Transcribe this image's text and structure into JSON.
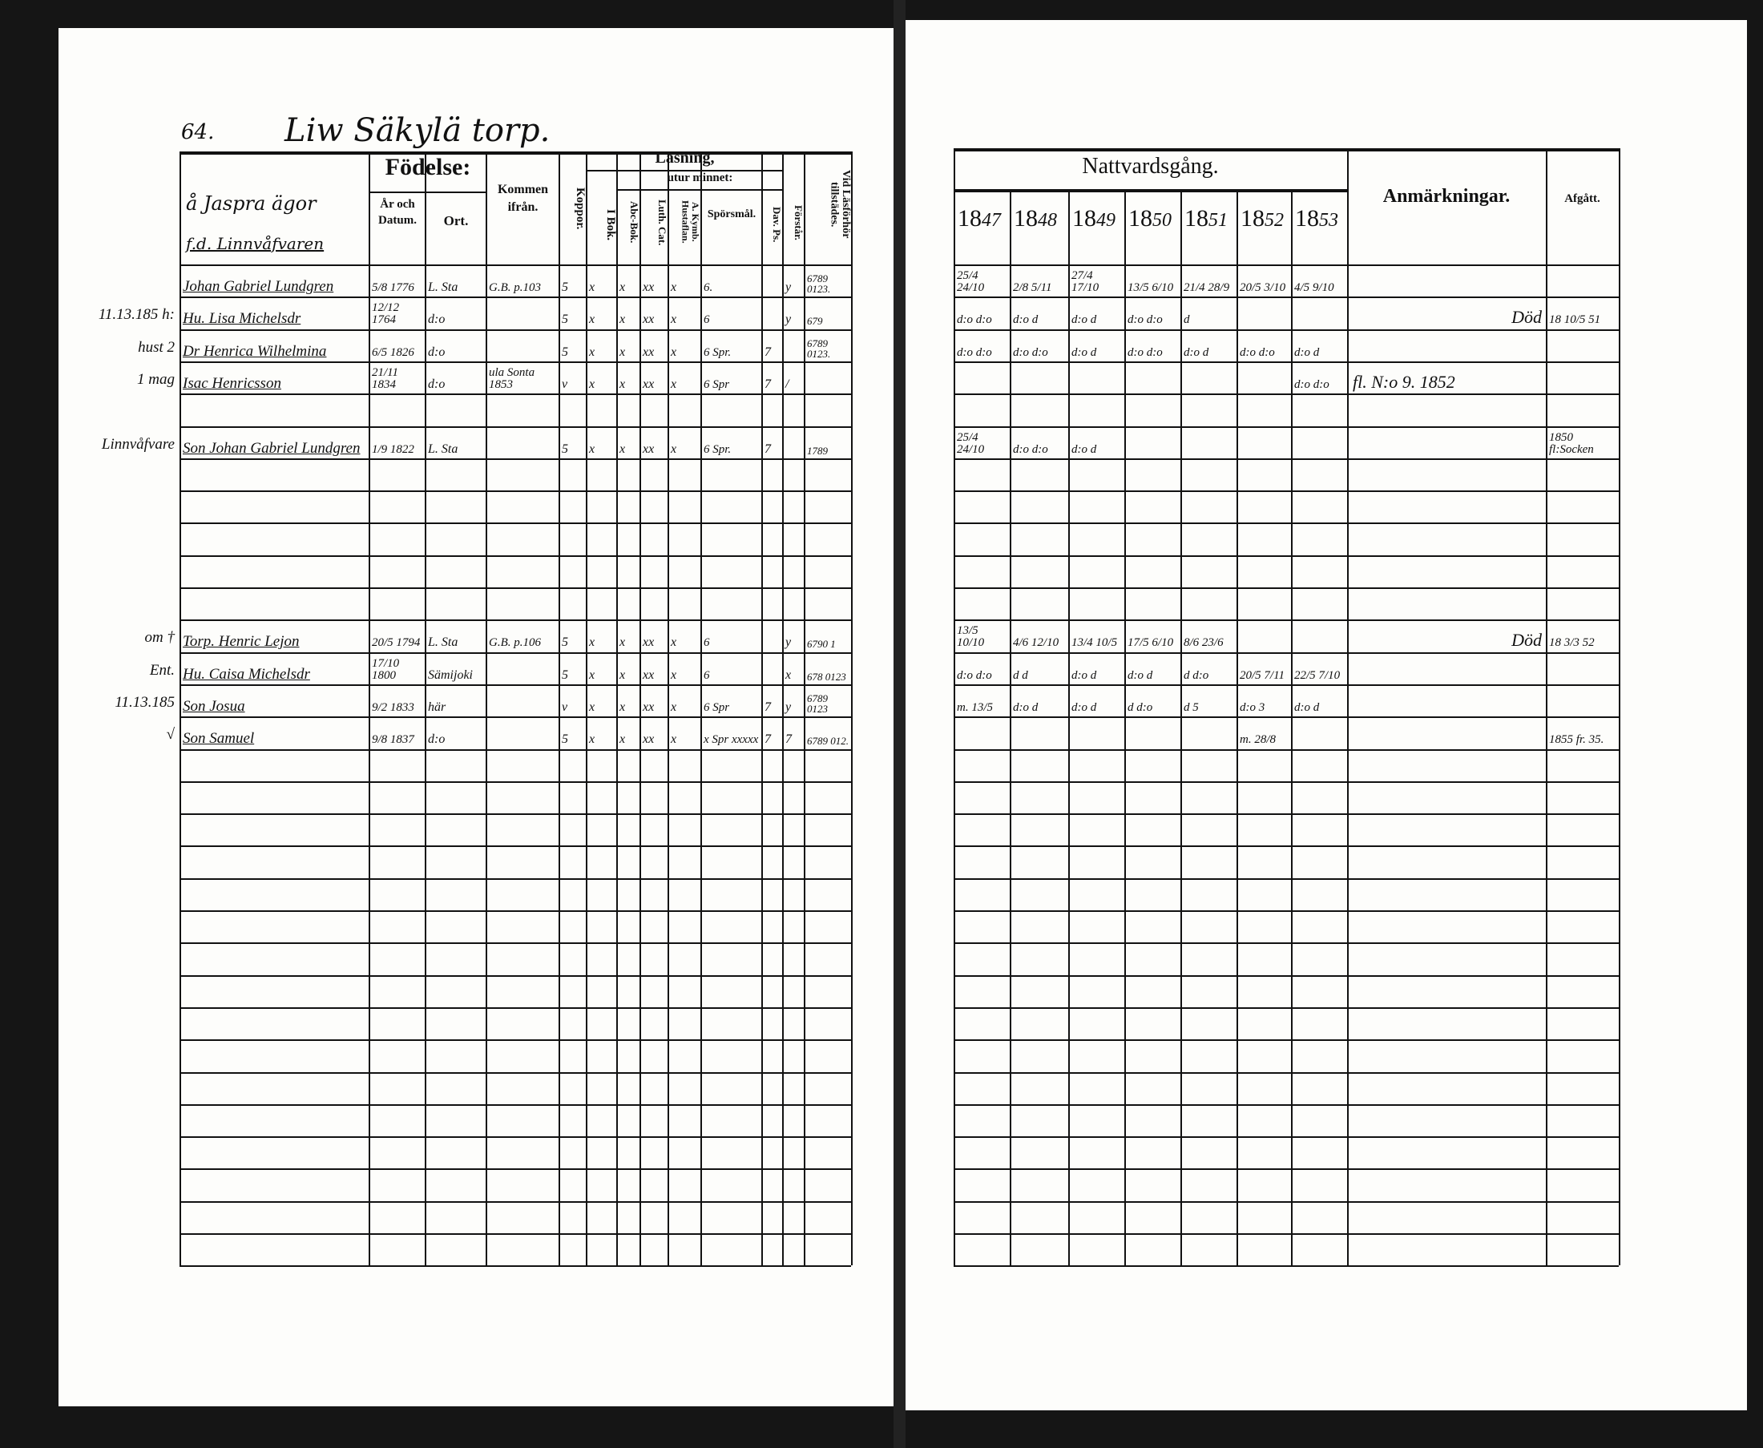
{
  "left_page": {
    "page_number": "64.",
    "title": "Liw Säkylä torp.",
    "owner_note": "å Jaspra ägor",
    "owner_note2": "f.d. Linnvåfvaren",
    "headers": {
      "fodelse": "Födelse:",
      "ar_och_datum": "År och Datum.",
      "ort": "Ort.",
      "kommen_ifran": "Kommen ifrån.",
      "koppor": "Koppor.",
      "lasning": "Läsning,",
      "utur_minnet": "utur minnet:",
      "i_bok": "I Bok.",
      "abc_bok": "Abc-Bok.",
      "luth_cat": "Luth. Cat.",
      "hustafflan": "A. Kymb. Hustaflan.",
      "sporsmal": "Spörsmål.",
      "dav_ps": "Dav. Ps.",
      "forstar": "Förstår.",
      "vid_lasforhor": "Vid Läsförhör tillstädes."
    },
    "rows": [
      {
        "margin": "",
        "cells": [
          "Johan Gabriel Lundgren",
          "5/8 1776",
          "L. Sta",
          "G.B. p.103",
          "5",
          "x",
          "x",
          "xx",
          "x",
          "6.",
          "",
          "y",
          "6789 0123."
        ]
      },
      {
        "margin": "11.13.185  h:",
        "cells": [
          "Hu. Lisa Michelsdr",
          "12/12 1764",
          "d:o",
          "",
          "5",
          "x",
          "x",
          "xx",
          "x",
          "6",
          "",
          "y",
          "679"
        ]
      },
      {
        "margin": "hust 2",
        "cells": [
          "Dr Henrica Wilhelmina",
          "6/5 1826",
          "d:o",
          "",
          "5",
          "x",
          "x",
          "xx",
          "x",
          "6 Spr.",
          "7",
          "",
          "6789 0123."
        ]
      },
      {
        "margin": "1 mag",
        "cells": [
          "Isac Henricsson",
          "21/11 1834",
          "d:o",
          "ula Sonta 1853",
          "v",
          "x",
          "x",
          "xx",
          "x",
          "6 Spr",
          "7",
          "/",
          ""
        ]
      },
      {
        "margin": "",
        "cells": []
      },
      {
        "margin": "Linnvåfvare",
        "cells": [
          "Son Johan Gabriel Lundgren",
          "1/9 1822",
          "L. Sta",
          "",
          "5",
          "x",
          "x",
          "xx",
          "x",
          "6 Spr.",
          "7",
          "",
          "1789"
        ]
      },
      {
        "margin": "",
        "cells": []
      },
      {
        "margin": "",
        "cells": []
      },
      {
        "margin": "",
        "cells": []
      },
      {
        "margin": "",
        "cells": []
      },
      {
        "margin": "",
        "cells": []
      },
      {
        "margin": "om †",
        "cells": [
          "Torp. Henric Lejon",
          "20/5 1794",
          "L. Sta",
          "G.B. p.106",
          "5",
          "x",
          "x",
          "xx",
          "x",
          "6",
          "",
          "y",
          "6790 1"
        ]
      },
      {
        "margin": "Ent.",
        "cells": [
          "Hu. Caisa Michelsdr",
          "17/10 1800",
          "Sämijoki",
          "",
          "5",
          "x",
          "x",
          "xx",
          "x",
          "6",
          "",
          "x",
          "678 0123"
        ]
      },
      {
        "margin": "11.13.185",
        "cells": [
          "Son Josua",
          "9/2 1833",
          "här",
          "",
          "v",
          "x",
          "x",
          "xx",
          "x",
          "6 Spr",
          "7",
          "y",
          "6789 0123"
        ]
      },
      {
        "margin": "√",
        "cells": [
          "Son Samuel",
          "9/8 1837",
          "d:o",
          "",
          "5",
          "x",
          "x",
          "xx",
          "x",
          "x Spr xxxxx",
          "7",
          "7",
          "6789 012."
        ]
      },
      {
        "margin": "",
        "cells": []
      },
      {
        "margin": "",
        "cells": []
      },
      {
        "margin": "",
        "cells": []
      },
      {
        "margin": "",
        "cells": []
      },
      {
        "margin": "",
        "cells": []
      },
      {
        "margin": "",
        "cells": []
      },
      {
        "margin": "",
        "cells": []
      },
      {
        "margin": "",
        "cells": []
      },
      {
        "margin": "",
        "cells": []
      },
      {
        "margin": "",
        "cells": []
      },
      {
        "margin": "",
        "cells": []
      },
      {
        "margin": "",
        "cells": []
      },
      {
        "margin": "",
        "cells": []
      },
      {
        "margin": "",
        "cells": []
      },
      {
        "margin": "",
        "cells": []
      },
      {
        "margin": "",
        "cells": []
      }
    ]
  },
  "right_page": {
    "nattvardsgang": "Nattvardsgång.",
    "anmarkningar": "Anmärkningar.",
    "afgatt": "Afgått.",
    "years": [
      {
        "pre": "18",
        "suf": "47"
      },
      {
        "pre": "18",
        "suf": "48"
      },
      {
        "pre": "18",
        "suf": "49"
      },
      {
        "pre": "18",
        "suf": "50"
      },
      {
        "pre": "18",
        "suf": "51"
      },
      {
        "pre": "18",
        "suf": "52"
      },
      {
        "pre": "18",
        "suf": "53"
      }
    ],
    "rows": [
      {
        "years": [
          "25/4 24/10",
          "2/8 5/11",
          "27/4 17/10",
          "13/5 6/10",
          "21/4 28/9",
          "20/5 3/10",
          "4/5 9/10"
        ],
        "remark": "",
        "afgatt": ""
      },
      {
        "years": [
          "d:o d:o",
          "d:o d",
          "d:o d",
          "d:o d:o",
          "d",
          "",
          " "
        ],
        "remark": "Död",
        "afgatt": "18 10/5 51"
      },
      {
        "years": [
          "d:o d:o",
          "d:o d:o",
          "d:o d",
          "d:o d:o",
          "d:o d",
          "d:o d:o",
          "d:o d"
        ],
        "remark": "",
        "afgatt": ""
      },
      {
        "years": [
          "",
          "",
          "",
          "",
          "",
          "",
          "d:o d:o"
        ],
        "remark": "fl. N:o 9. 1852",
        "afgatt": ""
      },
      {
        "years": [],
        "remark": "",
        "afgatt": ""
      },
      {
        "years": [
          "25/4 24/10",
          "d:o d:o",
          "d:o d",
          "",
          "",
          "",
          ""
        ],
        "remark": "",
        "afgatt": "1850 fl:Socken"
      },
      {
        "years": [],
        "remark": "",
        "afgatt": ""
      },
      {
        "years": [],
        "remark": "",
        "afgatt": ""
      },
      {
        "years": [],
        "remark": "",
        "afgatt": ""
      },
      {
        "years": [],
        "remark": "",
        "afgatt": ""
      },
      {
        "years": [],
        "remark": "",
        "afgatt": ""
      },
      {
        "years": [
          "13/5 10/10",
          "4/6 12/10",
          "13/4 10/5",
          "17/5 6/10",
          "8/6 23/6",
          "",
          ""
        ],
        "remark": "Död",
        "afgatt": "18 3/3 52"
      },
      {
        "years": [
          "d:o d:o",
          "d d",
          "d:o d",
          "d:o d",
          "d d:o",
          "20/5 7/11",
          "22/5 7/10"
        ],
        "remark": "",
        "afgatt": ""
      },
      {
        "years": [
          "m. 13/5",
          "d:o d",
          "d:o d",
          "d d:o",
          "d 5",
          "d:o 3",
          "d:o d"
        ],
        "remark": "",
        "afgatt": ""
      },
      {
        "years": [
          "",
          "",
          "",
          "",
          "",
          "m. 28/8",
          ""
        ],
        "remark": "",
        "afgatt": "1855 fr. 35."
      },
      {
        "years": [],
        "remark": "",
        "afgatt": ""
      },
      {
        "years": [],
        "remark": "",
        "afgatt": ""
      },
      {
        "years": [],
        "remark": "",
        "afgatt": ""
      },
      {
        "years": [],
        "remark": "",
        "afgatt": ""
      },
      {
        "years": [],
        "remark": "",
        "afgatt": ""
      },
      {
        "years": [],
        "remark": "",
        "afgatt": ""
      },
      {
        "years": [],
        "remark": "",
        "afgatt": ""
      },
      {
        "years": [],
        "remark": "",
        "afgatt": ""
      },
      {
        "years": [],
        "remark": "",
        "afgatt": ""
      },
      {
        "years": [],
        "remark": "",
        "afgatt": ""
      },
      {
        "years": [],
        "remark": "",
        "afgatt": ""
      },
      {
        "years": [],
        "remark": "",
        "afgatt": ""
      },
      {
        "years": [],
        "remark": "",
        "afgatt": ""
      },
      {
        "years": [],
        "remark": "",
        "afgatt": ""
      },
      {
        "years": [],
        "remark": "",
        "afgatt": ""
      },
      {
        "years": [],
        "remark": "",
        "afgatt": ""
      }
    ]
  }
}
